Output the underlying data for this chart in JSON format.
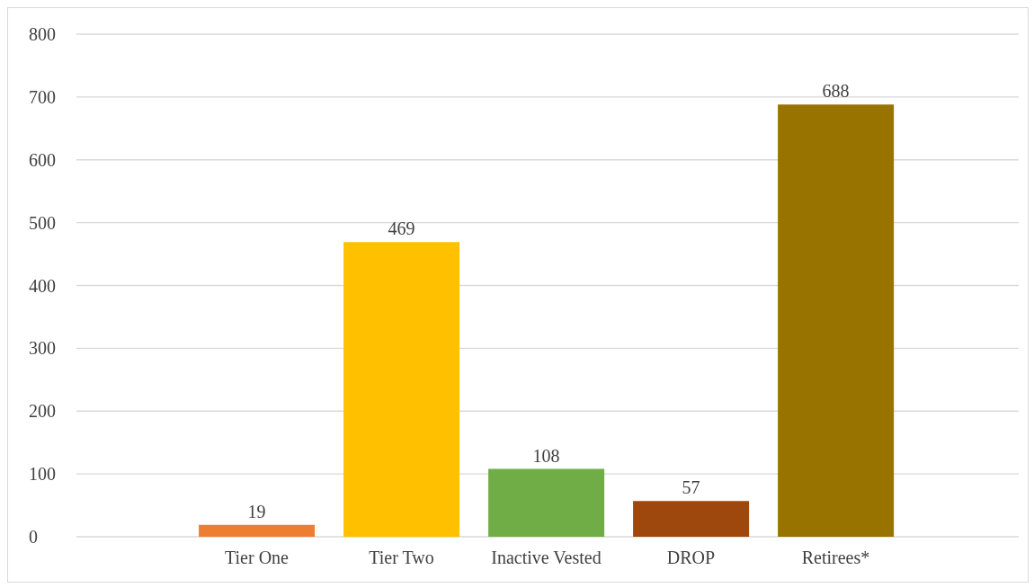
{
  "chart_data": {
    "type": "bar",
    "categories": [
      "Tier One",
      "Tier Two",
      "Inactive Vested",
      "DROP",
      "Retirees*"
    ],
    "values": [
      19,
      469,
      108,
      57,
      688
    ],
    "colors": [
      "#ed7d31",
      "#ffc000",
      "#70ad47",
      "#9e480e",
      "#997300"
    ],
    "ylim": [
      0,
      800
    ],
    "yticks": [
      0,
      100,
      200,
      300,
      400,
      500,
      600,
      700,
      800
    ],
    "grid": "y",
    "data_labels": true
  }
}
